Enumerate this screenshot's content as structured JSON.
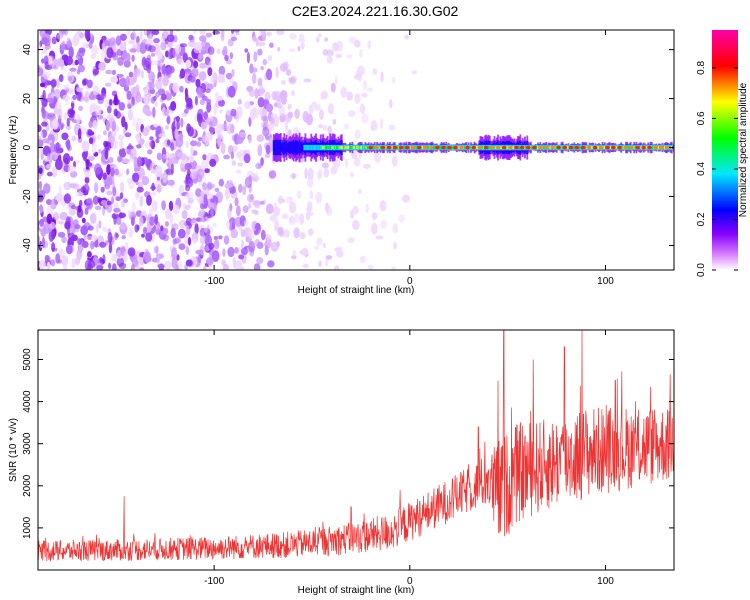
{
  "title": "C2E3.2024.221.16.30.G02",
  "chart_data": [
    {
      "type": "heatmap",
      "xlabel": "Height of straight line (km)",
      "ylabel": "Frequency (Hz)",
      "xlim": [
        -190,
        135
      ],
      "ylim": [
        -50,
        48
      ],
      "xticks": [
        -100,
        0,
        100
      ],
      "yticks": [
        -40,
        -20,
        0,
        20,
        40
      ],
      "colorbar": {
        "label": "Normalized spectral amplitude",
        "range": [
          0.0,
          0.95
        ],
        "ticks": [
          0.0,
          0.2,
          0.4,
          0.6,
          0.8
        ],
        "colormap": [
          "#ffffff",
          "#8800ff",
          "#0000ff",
          "#00e8ff",
          "#00ff00",
          "#ffff00",
          "#ff0000",
          "#ff00aa"
        ]
      },
      "description_regions": [
        {
          "x_range": [
            -190,
            -70
          ],
          "pattern": "scattered noise over all frequencies",
          "amplitude": 0.1
        },
        {
          "x_range": [
            -70,
            -15
          ],
          "pattern": "sparse noise, fading",
          "amplitude": 0.05
        },
        {
          "x_range": [
            -70,
            135
          ],
          "pattern": "narrow band near 0 Hz",
          "amplitude": 0.9
        }
      ]
    },
    {
      "type": "line",
      "xlabel": "Height of straight line (km)",
      "ylabel": "SNR (10 * v/v)",
      "xlim": [
        -190,
        135
      ],
      "ylim": [
        0,
        5700
      ],
      "xticks": [
        -100,
        0,
        100
      ],
      "yticks": [
        1000,
        2000,
        3000,
        4000,
        5000
      ],
      "color": "#ee3333",
      "envelope": {
        "x": [
          -190,
          -150,
          -100,
          -60,
          -30,
          -10,
          10,
          30,
          40,
          45,
          55,
          70,
          90,
          110,
          135
        ],
        "mid": [
          450,
          470,
          520,
          600,
          750,
          900,
          1400,
          1900,
          2150,
          1800,
          2300,
          2500,
          2800,
          2900,
          3000
        ],
        "amp": [
          250,
          260,
          280,
          320,
          380,
          450,
          500,
          550,
          650,
          1300,
          1200,
          1100,
          1100,
          1000,
          900
        ]
      },
      "spikes": [
        {
          "x": -146,
          "y": 1750
        },
        {
          "x": -30,
          "y": 1500
        },
        {
          "x": -5,
          "y": 1900
        },
        {
          "x": 35,
          "y": 3400
        },
        {
          "x": 45,
          "y": 4500
        },
        {
          "x": 48,
          "y": 5700
        },
        {
          "x": 63,
          "y": 5000
        },
        {
          "x": 79,
          "y": 5300
        },
        {
          "x": 88,
          "y": 5700
        },
        {
          "x": 105,
          "y": 4500
        },
        {
          "x": 133,
          "y": 4650
        }
      ]
    }
  ]
}
